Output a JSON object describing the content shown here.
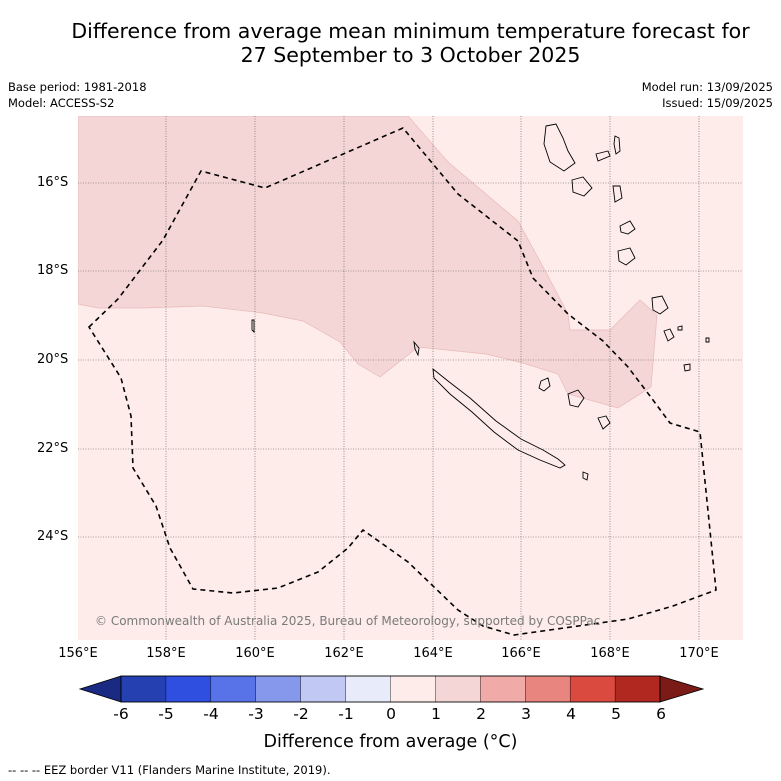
{
  "title_line1": "Difference from average mean minimum temperature forecast for",
  "title_line2": "27 September to 3 October 2025",
  "base_period": "Base period: 1981-2018",
  "model": "Model: ACCESS-S2",
  "model_run": "Model run: 13/09/2025",
  "issued": "Issued: 15/09/2025",
  "lat_labels": [
    "16°S",
    "18°S",
    "20°S",
    "22°S",
    "24°S"
  ],
  "lon_labels": [
    "156°E",
    "158°E",
    "160°E",
    "162°E",
    "164°E",
    "166°E",
    "168°E",
    "170°E"
  ],
  "copyright": "© Commonwealth of Australia 2025, Bureau of Meteorology, supported by COSPPac",
  "colorbar": {
    "ticks": [
      "-6",
      "-5",
      "-4",
      "-3",
      "-2",
      "-1",
      "0",
      "1",
      "2",
      "3",
      "4",
      "5",
      "6"
    ],
    "colors": [
      "#1a2a82",
      "#2540b0",
      "#2f4fe0",
      "#5873e8",
      "#8598ec",
      "#c1c8f4",
      "#e8ebfa",
      "#fdecea",
      "#f5d6d6",
      "#f0aaa8",
      "#e8857e",
      "#da4a3e",
      "#b0281f",
      "#7a1b17"
    ],
    "label": "Difference from average (°C)"
  },
  "footnote": "--  --  -- EEZ border V11 (Flanders Marine Institute, 2019).",
  "map_colors": {
    "background_fill": "#fdecea",
    "anomaly_fill": "#f5d6d6"
  }
}
